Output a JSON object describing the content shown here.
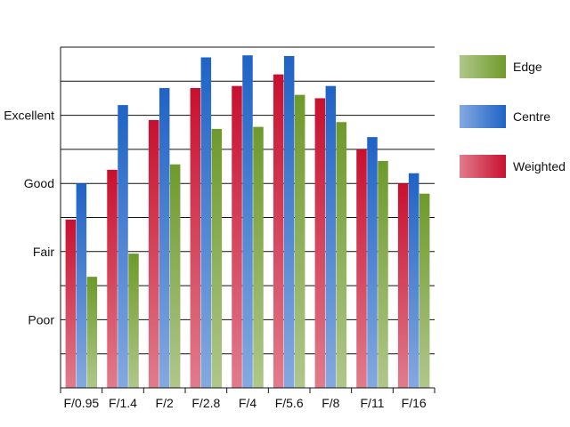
{
  "chart_data": {
    "type": "bar",
    "categories": [
      "F/0.95",
      "F/1.4",
      "F/2",
      "F/2.8",
      "F/4",
      "F/5.6",
      "F/8",
      "F/11",
      "F/16"
    ],
    "y_tick_labels": [
      "Poor",
      "Fair",
      "Good",
      "Excellent"
    ],
    "y_tick_values": [
      1,
      2,
      3,
      4
    ],
    "ylim": [
      0,
      5
    ],
    "grid": true,
    "legend_position": "right",
    "series": [
      {
        "name": "Weighted",
        "color": "#c8102e",
        "values": [
          2.47,
          3.2,
          3.93,
          4.4,
          4.43,
          4.6,
          4.25,
          3.5,
          3.0
        ]
      },
      {
        "name": "Centre",
        "color": "#1f63c6",
        "values": [
          3.0,
          4.15,
          4.4,
          4.85,
          4.88,
          4.87,
          4.43,
          3.68,
          3.15
        ]
      },
      {
        "name": "Edge",
        "color": "#6e9a2a",
        "values": [
          1.63,
          1.97,
          3.28,
          3.8,
          3.83,
          4.3,
          3.9,
          3.33,
          2.85
        ]
      }
    ],
    "legend_order": [
      "Edge",
      "Centre",
      "Weighted"
    ]
  }
}
